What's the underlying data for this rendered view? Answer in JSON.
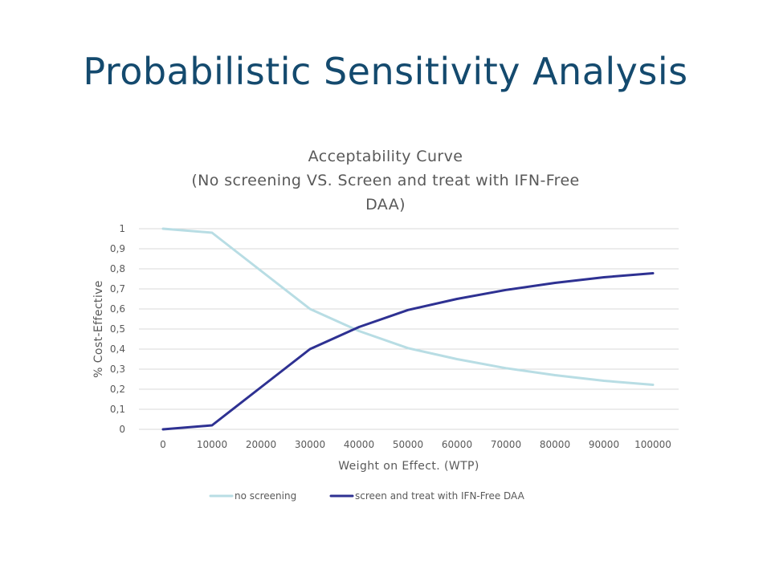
{
  "slide": {
    "title": "Probabilistic Sensitivity Analysis"
  },
  "chart_data": {
    "type": "line",
    "title_lines": [
      "Acceptability Curve",
      "(No screening VS. Screen and treat with IFN-Free",
      "DAA)"
    ],
    "xlabel": "Weight on Effect. (WTP)",
    "ylabel": "% Cost-Effective",
    "x": [
      0,
      10000,
      20000,
      30000,
      40000,
      50000,
      60000,
      70000,
      80000,
      90000,
      100000
    ],
    "x_tick_labels": [
      "0",
      "10000",
      "20000",
      "30000",
      "40000",
      "50000",
      "60000",
      "70000",
      "80000",
      "90000",
      "100000"
    ],
    "y_ticks": [
      0,
      0.1,
      0.2,
      0.3,
      0.4,
      0.5,
      0.6,
      0.7,
      0.8,
      0.9,
      1
    ],
    "y_tick_labels": [
      "0",
      "0,1",
      "0,2",
      "0,3",
      "0,4",
      "0,5",
      "0,6",
      "0,7",
      "0,8",
      "0,9",
      "1"
    ],
    "ylim": [
      0,
      1
    ],
    "grid": true,
    "legend_position": "bottom",
    "series": [
      {
        "name": "no screening",
        "color": "#b8dde4",
        "values": [
          1.0,
          0.98,
          0.79,
          0.6,
          0.49,
          0.405,
          0.35,
          0.305,
          0.27,
          0.242,
          0.222
        ]
      },
      {
        "name": "screen and treat with IFN-Free DAA",
        "color": "#2e3192",
        "values": [
          0.0,
          0.02,
          0.21,
          0.4,
          0.51,
          0.595,
          0.65,
          0.695,
          0.73,
          0.758,
          0.778
        ]
      }
    ]
  }
}
